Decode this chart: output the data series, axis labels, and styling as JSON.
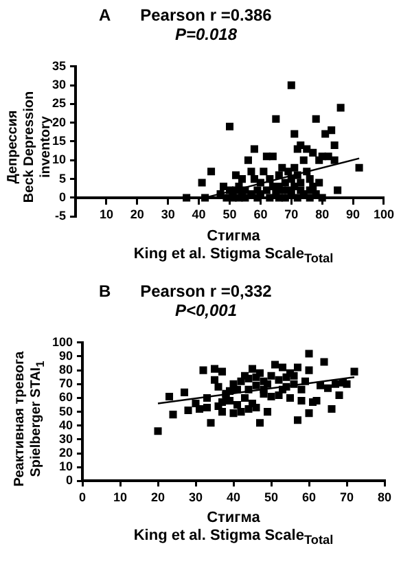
{
  "chart_data": [
    {
      "type": "scatter",
      "title": "Pearson r =0.386",
      "subtitle": "P=0.018",
      "annotations": [
        "A"
      ],
      "xlabel": "Стигма\nKing et al. Stigma Scale$_{Total}$",
      "ylabel": "Депрессия\nBeck Depression inventory",
      "xlim": [
        0,
        100
      ],
      "xticks": [
        10,
        20,
        30,
        40,
        50,
        60,
        70,
        80,
        90,
        100
      ],
      "ylim": [
        -5,
        35
      ],
      "yticks": [
        -5,
        0,
        5,
        10,
        15,
        20,
        25,
        30,
        35
      ],
      "grid": false,
      "legend": false,
      "marker": "square",
      "series": [
        {
          "color": "#000000",
          "x": [
            36,
            41,
            42,
            44,
            47,
            48,
            49,
            50,
            50,
            51,
            51,
            52,
            52,
            53,
            53,
            54,
            55,
            55,
            56,
            57,
            57,
            58,
            58,
            59,
            59,
            60,
            60,
            61,
            62,
            62,
            63,
            63,
            64,
            64,
            65,
            65,
            66,
            66,
            67,
            67,
            68,
            68,
            69,
            69,
            70,
            70,
            70,
            71,
            71,
            71,
            72,
            72,
            72,
            73,
            73,
            73,
            74,
            74,
            75,
            75,
            76,
            76,
            77,
            77,
            78,
            78,
            79,
            79,
            80,
            80,
            81,
            82,
            83,
            84,
            84,
            85,
            86,
            92,
            54,
            66,
            76
          ],
          "values": [
            0,
            4,
            0,
            7,
            1,
            3,
            0,
            2,
            19,
            1,
            0,
            6,
            2,
            0,
            3,
            1,
            2,
            0,
            10,
            7,
            1,
            13,
            5,
            0,
            2,
            4,
            1,
            7,
            11,
            2,
            0,
            5,
            11,
            3,
            21,
            1,
            0,
            6,
            2,
            8,
            4,
            0,
            7,
            2,
            30,
            5,
            1,
            17,
            8,
            3,
            13,
            6,
            0,
            14,
            4,
            2,
            1,
            10,
            13,
            7,
            5,
            0,
            3,
            12,
            21,
            1,
            10,
            4,
            0,
            11,
            17,
            11,
            18,
            14,
            10,
            2,
            24,
            8,
            5,
            3,
            2
          ]
        },
        {
          "type": "line",
          "color": "#000000",
          "marker": "none",
          "x": [
            42,
            92
          ],
          "values": [
            0,
            10.5
          ]
        }
      ]
    },
    {
      "type": "scatter",
      "title": "Pearson r =0,332",
      "subtitle": "P<0,001",
      "annotations": [
        "B"
      ],
      "xlabel": "Стигма\nKing et al. Stigma Scale$_{Total}$",
      "ylabel": "Реактивная тревога\nSpielberger STAI$_{1}$",
      "xlim": [
        0,
        80
      ],
      "xticks": [
        0,
        10,
        20,
        30,
        40,
        50,
        60,
        70,
        80
      ],
      "ylim": [
        0,
        100
      ],
      "yticks": [
        0,
        10,
        20,
        30,
        40,
        50,
        60,
        70,
        80,
        90,
        100
      ],
      "grid": false,
      "legend": false,
      "marker": "square",
      "series": [
        {
          "color": "#000000",
          "x": [
            20,
            23,
            24,
            27,
            28,
            30,
            31,
            32,
            33,
            33,
            34,
            35,
            35,
            36,
            37,
            37,
            37,
            38,
            39,
            39,
            40,
            40,
            41,
            41,
            42,
            42,
            43,
            43,
            44,
            44,
            45,
            45,
            46,
            46,
            46,
            47,
            47,
            48,
            48,
            49,
            49,
            50,
            50,
            51,
            52,
            52,
            53,
            53,
            54,
            54,
            55,
            56,
            56,
            57,
            57,
            58,
            58,
            59,
            60,
            60,
            60,
            61,
            62,
            63,
            64,
            65,
            66,
            67,
            68,
            69,
            70,
            72,
            36,
            38,
            44,
            48,
            55
          ],
          "values": [
            36,
            61,
            48,
            64,
            51,
            56,
            52,
            80,
            60,
            53,
            42,
            81,
            73,
            68,
            79,
            57,
            50,
            62,
            58,
            65,
            70,
            49,
            66,
            55,
            72,
            50,
            60,
            76,
            66,
            52,
            81,
            56,
            75,
            69,
            53,
            42,
            78,
            63,
            72,
            70,
            50,
            76,
            61,
            84,
            62,
            73,
            66,
            82,
            75,
            68,
            78,
            76,
            70,
            44,
            82,
            66,
            58,
            72,
            92,
            80,
            49,
            57,
            58,
            69,
            86,
            67,
            52,
            70,
            62,
            71,
            70,
            79,
            54,
            63,
            74,
            66,
            60
          ]
        },
        {
          "type": "line",
          "color": "#000000",
          "marker": "none",
          "x": [
            20,
            72
          ],
          "values": [
            56,
            75
          ]
        }
      ]
    }
  ]
}
